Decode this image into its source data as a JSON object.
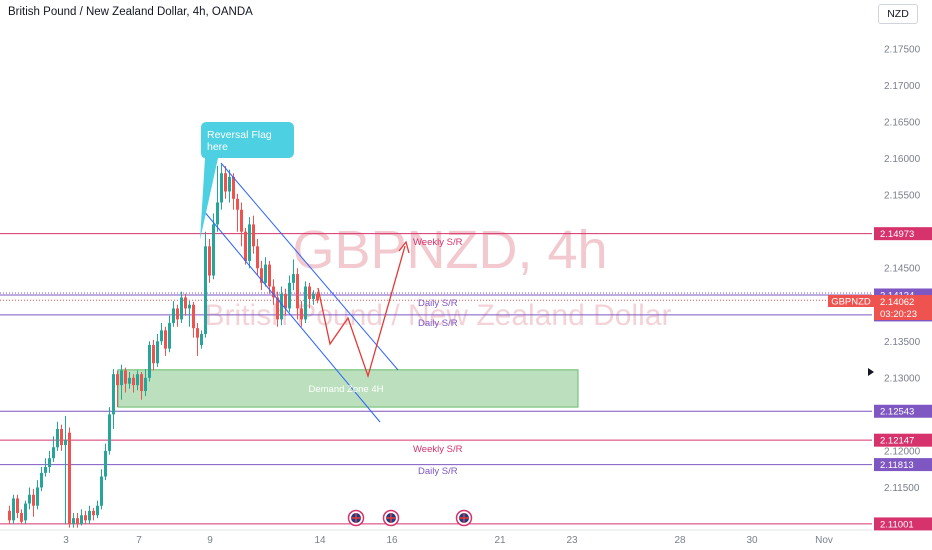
{
  "header": {
    "title": "British Pound / New Zealand Dollar, 4h, OANDA",
    "currency_button": "NZD"
  },
  "watermark": {
    "symbol_line": "GBPNZD, 4h",
    "name_line": "British Pound / New Zealand Dollar"
  },
  "colors": {
    "up": "#26a69a",
    "down": "#ef5350",
    "resistance": "#d6336c",
    "support": "#7e57c2",
    "channel": "#2962ff",
    "projection": "#e53935",
    "demand_fill": "#a5d6a7",
    "callout": "#4dd0e1"
  },
  "price_axis": {
    "ticks": [
      "2.17500",
      "2.17000",
      "2.16500",
      "2.16000",
      "2.15500",
      "2.14500",
      "2.13500",
      "2.13000",
      "2.12000",
      "2.11500"
    ]
  },
  "time_axis": {
    "ticks": [
      "3",
      "7",
      "9",
      "14",
      "16",
      "21",
      "23",
      "28",
      "30",
      "Nov"
    ]
  },
  "levels": [
    {
      "price": 2.14973,
      "label": "Weekly S/R",
      "tag": "2.14973",
      "kind": "resistance"
    },
    {
      "price": 2.14134,
      "label": "",
      "tag": "2.14134",
      "kind": "support"
    },
    {
      "price": 2.13861,
      "label": "Daily S/R",
      "tag": "2.13861",
      "kind": "support"
    },
    {
      "price": 2.12543,
      "label": "",
      "tag": "2.12543",
      "kind": "support"
    },
    {
      "price": 2.12147,
      "label": "Weekly S/R",
      "tag": "2.12147",
      "kind": "resistance"
    },
    {
      "price": 2.11813,
      "label": "Daily S/R",
      "tag": "2.11813",
      "kind": "support"
    },
    {
      "price": 2.11001,
      "label": "",
      "tag": "2.11001",
      "kind": "resistance"
    }
  ],
  "level_label_daily_top": "Daily S/R",
  "current_price": {
    "symbol": "GBPNZD",
    "price": "2.14062",
    "countdown": "03:20:23"
  },
  "demand_zone": {
    "label": "Demand Zone 4H",
    "top": 2.1311,
    "bottom": 2.126
  },
  "callout": {
    "line1": "Reversal Flag",
    "line2": "here"
  },
  "events_count": 3
}
